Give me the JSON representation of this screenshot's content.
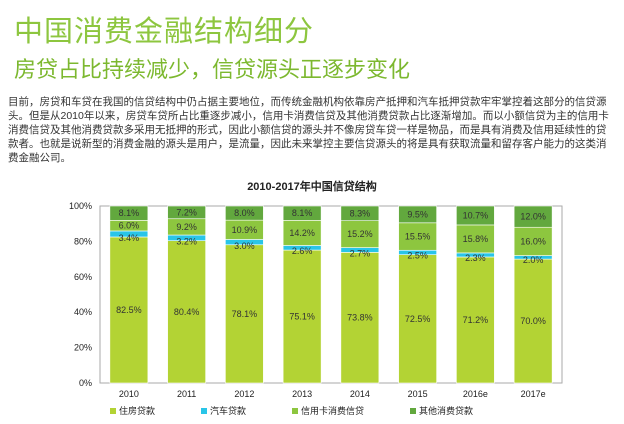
{
  "header": {
    "title": "中国消费金融结构细分",
    "subtitle": "房贷占比持续减少，信贷源头正逐步变化",
    "paragraph": "目前，房贷和车贷在我国的信贷结构中仍占据主要地位，而传统金融机构依靠房产抵押和汽车抵押贷款牢牢掌控着这部分的信贷源头。但是从2010年以来，房贷车贷所占比重逐步减小，信用卡消费信贷及其他消费贷款占比逐渐增加。而以小额信贷为主的信用卡消费信贷及其他消费贷款多采用无抵押的形式，因此小额信贷的源头并不像房贷车贷一样是物品，而是具有消费及信用延续性的贷款者。也就是说新型的消费金融的源头是用户，是流量，因此未来掌控主要信贷源头的将是具有获取流量和留存客户能力的这类消费金融公司。"
  },
  "chart_data": {
    "type": "bar",
    "stacked": true,
    "title": "2010-2017年中国信贷结构",
    "categories": [
      "2010",
      "2011",
      "2012",
      "2013",
      "2014",
      "2015",
      "2016e",
      "2017e"
    ],
    "series": [
      {
        "name": "住房贷款",
        "color": "#b3d334",
        "values": [
          82.5,
          80.4,
          78.1,
          75.1,
          73.8,
          72.5,
          71.2,
          70.0
        ]
      },
      {
        "name": "汽车贷款",
        "color": "#29c5e8",
        "values": [
          3.4,
          3.2,
          3.0,
          2.6,
          2.7,
          2.5,
          2.3,
          2.0
        ]
      },
      {
        "name": "信用卡消费信贷",
        "color": "#8dc63f",
        "values": [
          6.0,
          9.2,
          10.9,
          14.2,
          15.2,
          15.5,
          15.8,
          16.0
        ]
      },
      {
        "name": "其他消费贷款",
        "color": "#62a83e",
        "values": [
          8.1,
          7.2,
          8.0,
          8.1,
          8.3,
          9.5,
          10.7,
          12.0
        ]
      }
    ],
    "yticks": [
      "0%",
      "20%",
      "40%",
      "60%",
      "80%",
      "100%"
    ],
    "ylim": [
      0,
      100
    ],
    "legend": "bottom"
  }
}
